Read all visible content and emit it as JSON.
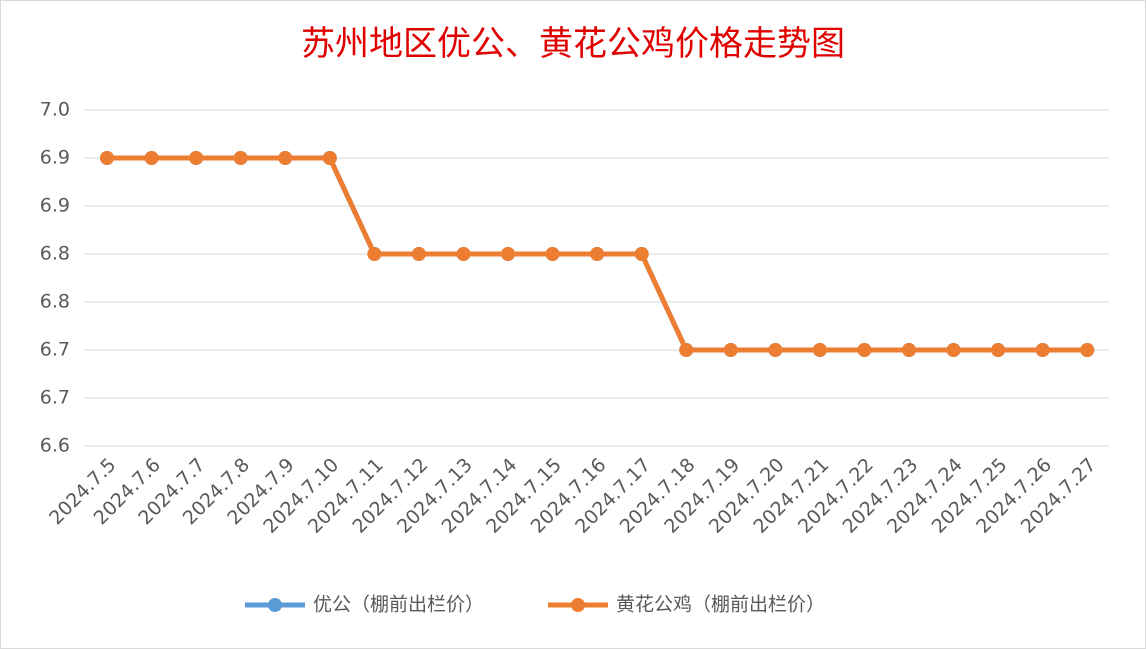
{
  "chart_data": {
    "type": "line",
    "title": "苏州地区优公、黄花公鸡价格走势图",
    "categories": [
      "2024.7.5",
      "2024.7.6",
      "2024.7.7",
      "2024.7.8",
      "2024.7.9",
      "2024.7.10",
      "2024.7.11",
      "2024.7.12",
      "2024.7.13",
      "2024.7.14",
      "2024.7.15",
      "2024.7.16",
      "2024.7.17",
      "2024.7.18",
      "2024.7.19",
      "2024.7.20",
      "2024.7.21",
      "2024.7.22",
      "2024.7.23",
      "2024.7.24",
      "2024.7.25",
      "2024.7.26",
      "2024.7.27"
    ],
    "series": [
      {
        "name": "优公（棚前出栏价）",
        "color": "#5b9bd5",
        "values": [
          6.9,
          6.9,
          6.9,
          6.9,
          6.9,
          6.9,
          6.8,
          6.8,
          6.8,
          6.8,
          6.8,
          6.8,
          6.8,
          6.7,
          6.7,
          6.7,
          6.7,
          6.7,
          6.7,
          6.7,
          6.7,
          6.7,
          6.7
        ]
      },
      {
        "name": "黄花公鸡（棚前出栏价）",
        "color": "#ed7d31",
        "values": [
          6.9,
          6.9,
          6.9,
          6.9,
          6.9,
          6.9,
          6.8,
          6.8,
          6.8,
          6.8,
          6.8,
          6.8,
          6.8,
          6.7,
          6.7,
          6.7,
          6.7,
          6.7,
          6.7,
          6.7,
          6.7,
          6.7,
          6.7
        ]
      }
    ],
    "ylim": [
      6.6,
      6.95
    ],
    "yticks": [
      6.6,
      {
        "value": 6.65,
        "label": "6.7"
      },
      6.7,
      {
        "value": 6.75,
        "label": "6.8"
      },
      6.8,
      {
        "value": 6.85,
        "label": "6.9"
      },
      6.9,
      {
        "value": 6.95,
        "label": "7.0"
      }
    ],
    "grid": true,
    "legend": "bottom"
  }
}
